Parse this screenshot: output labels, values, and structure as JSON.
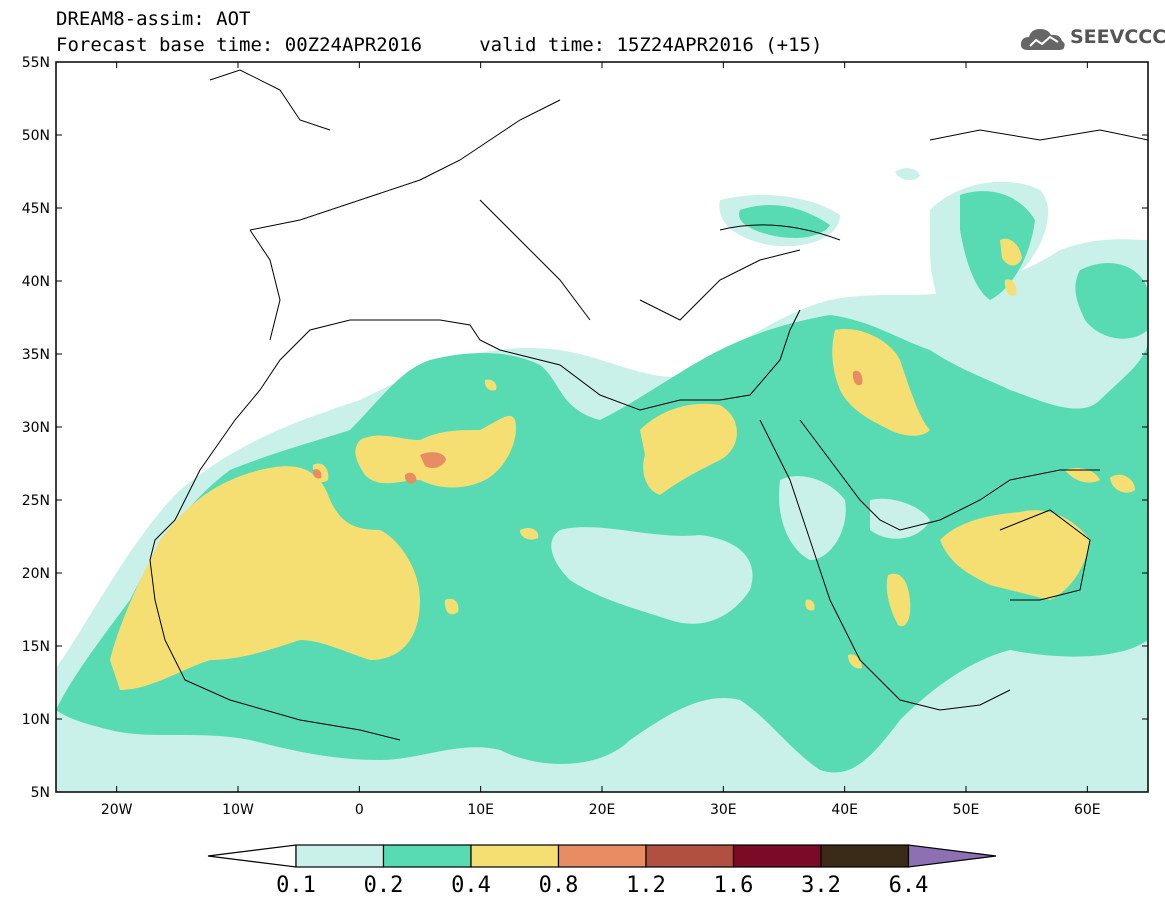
{
  "header": {
    "title_line1": "DREAM8-assim: AOT",
    "title_line2": "Forecast base time: 00Z24APR2016     valid time: 15Z24APR2016 (+15)",
    "brand": "SEEVCCC",
    "brand_icon": "cloud-logo-icon"
  },
  "map": {
    "lon_range": [
      -25,
      65
    ],
    "lat_range": [
      5,
      55
    ],
    "lat_labels": [
      "55N",
      "50N",
      "45N",
      "40N",
      "35N",
      "30N",
      "25N",
      "20N",
      "15N",
      "10N",
      "5N"
    ],
    "lon_labels": [
      "20W",
      "10W",
      "0",
      "10E",
      "20E",
      "30E",
      "40E",
      "50E",
      "60E"
    ]
  },
  "legend": {
    "labels": [
      "0.1",
      "0.2",
      "0.4",
      "0.8",
      "1.2",
      "1.6",
      "3.2",
      "6.4"
    ],
    "colors": [
      "#ffffff",
      "#c9f1ea",
      "#58dbb3",
      "#f5df73",
      "#e78c63",
      "#b05040",
      "#7a0a26",
      "#3a2a18",
      "#8d6fb4"
    ]
  }
}
